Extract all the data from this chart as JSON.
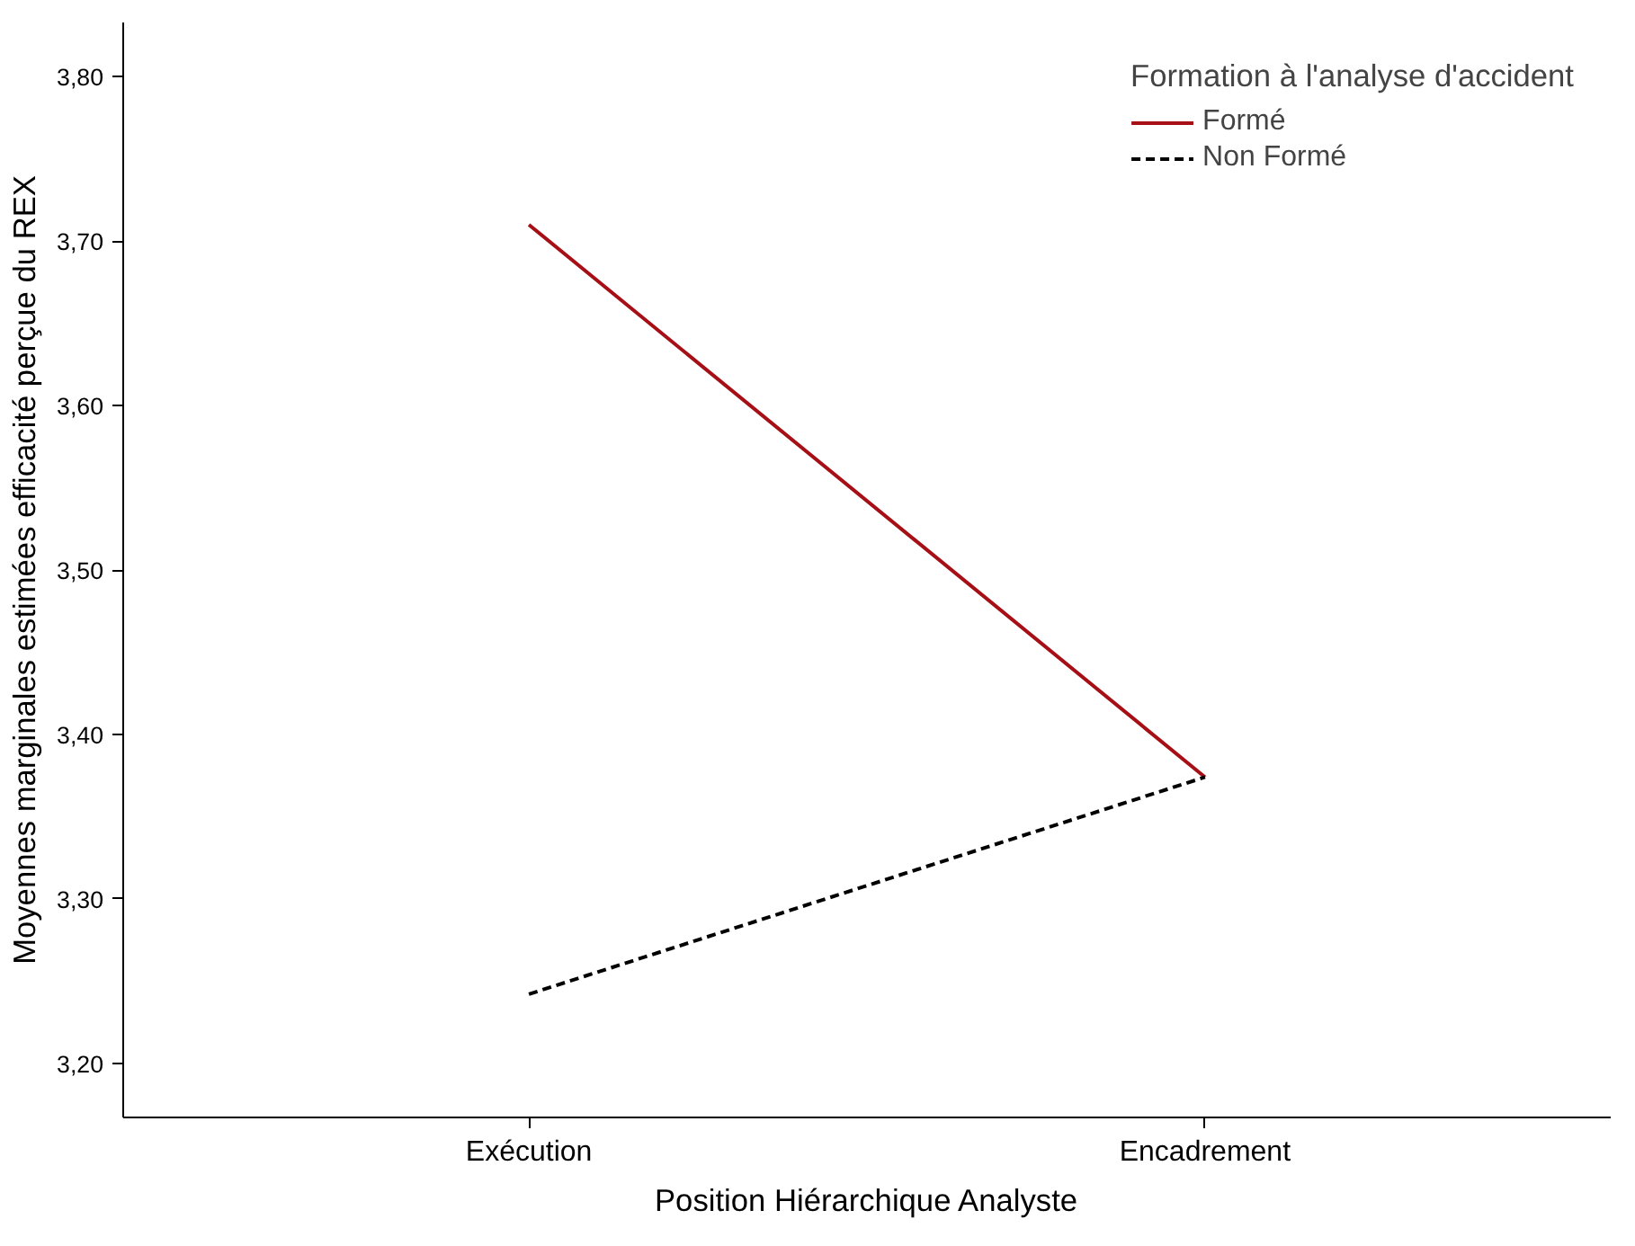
{
  "chart_data": {
    "type": "line",
    "xlabel": "Position Hiérarchique Analyste",
    "ylabel": "Moyennes marginales estimées efficacité perçue du REX",
    "legend_title": "Formation à l'analyse d'accident",
    "categories": [
      "Exécution",
      "Encadrement"
    ],
    "series": [
      {
        "name": "Formé",
        "color": "#a50f15",
        "line_style": "solid",
        "values": [
          3.71,
          3.374
        ]
      },
      {
        "name": "Non Formé",
        "color": "#000000",
        "line_style": "dashed",
        "values": [
          3.242,
          3.374
        ]
      }
    ],
    "ylim": [
      3.167,
      3.833
    ],
    "yticks": [
      {
        "value": 3.2,
        "label": "3,20"
      },
      {
        "value": 3.3,
        "label": "3,30"
      },
      {
        "value": 3.4,
        "label": "3,40"
      },
      {
        "value": 3.5,
        "label": "3,50"
      },
      {
        "value": 3.6,
        "label": "3,60"
      },
      {
        "value": 3.7,
        "label": "3,70"
      },
      {
        "value": 3.8,
        "label": "3,80"
      }
    ],
    "grid": false,
    "legend": "top right",
    "marker": "none"
  }
}
